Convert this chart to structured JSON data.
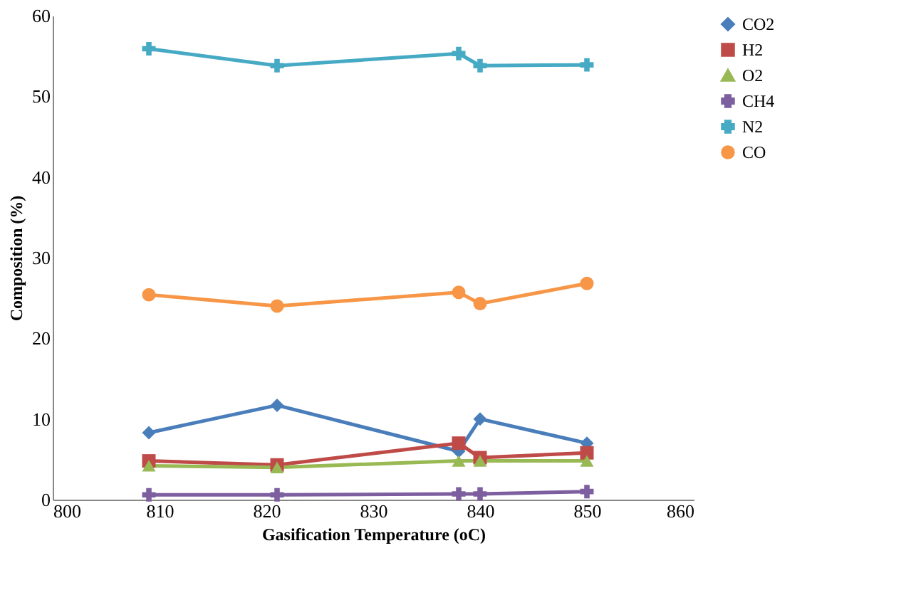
{
  "chart_data": {
    "type": "line",
    "xlabel": "Gasification Temperature (oC)",
    "ylabel": "Composition (%)",
    "x": [
      809,
      821,
      838,
      840,
      850
    ],
    "xlim": [
      800,
      860
    ],
    "xticks": [
      800,
      810,
      820,
      830,
      840,
      850,
      860
    ],
    "ylim": [
      0,
      60
    ],
    "yticks": [
      0,
      10,
      20,
      30,
      40,
      50,
      60
    ],
    "grid": false,
    "legend": "right",
    "series": [
      {
        "name": "CO2",
        "color": "#4a7ebb",
        "marker": "diamond",
        "values": [
          8.3,
          11.7,
          6.0,
          10.0,
          7.0
        ]
      },
      {
        "name": "H2",
        "color": "#be4b48",
        "marker": "square",
        "values": [
          4.8,
          4.3,
          7.0,
          5.2,
          5.8
        ]
      },
      {
        "name": "O2",
        "color": "#98b954",
        "marker": "triangle",
        "values": [
          4.2,
          4.0,
          4.8,
          4.8,
          4.8
        ]
      },
      {
        "name": "CH4",
        "color": "#7d5fa0",
        "marker": "cross",
        "values": [
          0.6,
          0.6,
          0.7,
          0.7,
          1.0
        ]
      },
      {
        "name": "N2",
        "color": "#46aac5",
        "marker": "cross",
        "values": [
          55.9,
          53.8,
          55.3,
          53.8,
          53.9
        ]
      },
      {
        "name": "CO",
        "color": "#f79646",
        "marker": "circle",
        "values": [
          25.4,
          24.0,
          25.7,
          24.3,
          26.8
        ]
      }
    ]
  }
}
